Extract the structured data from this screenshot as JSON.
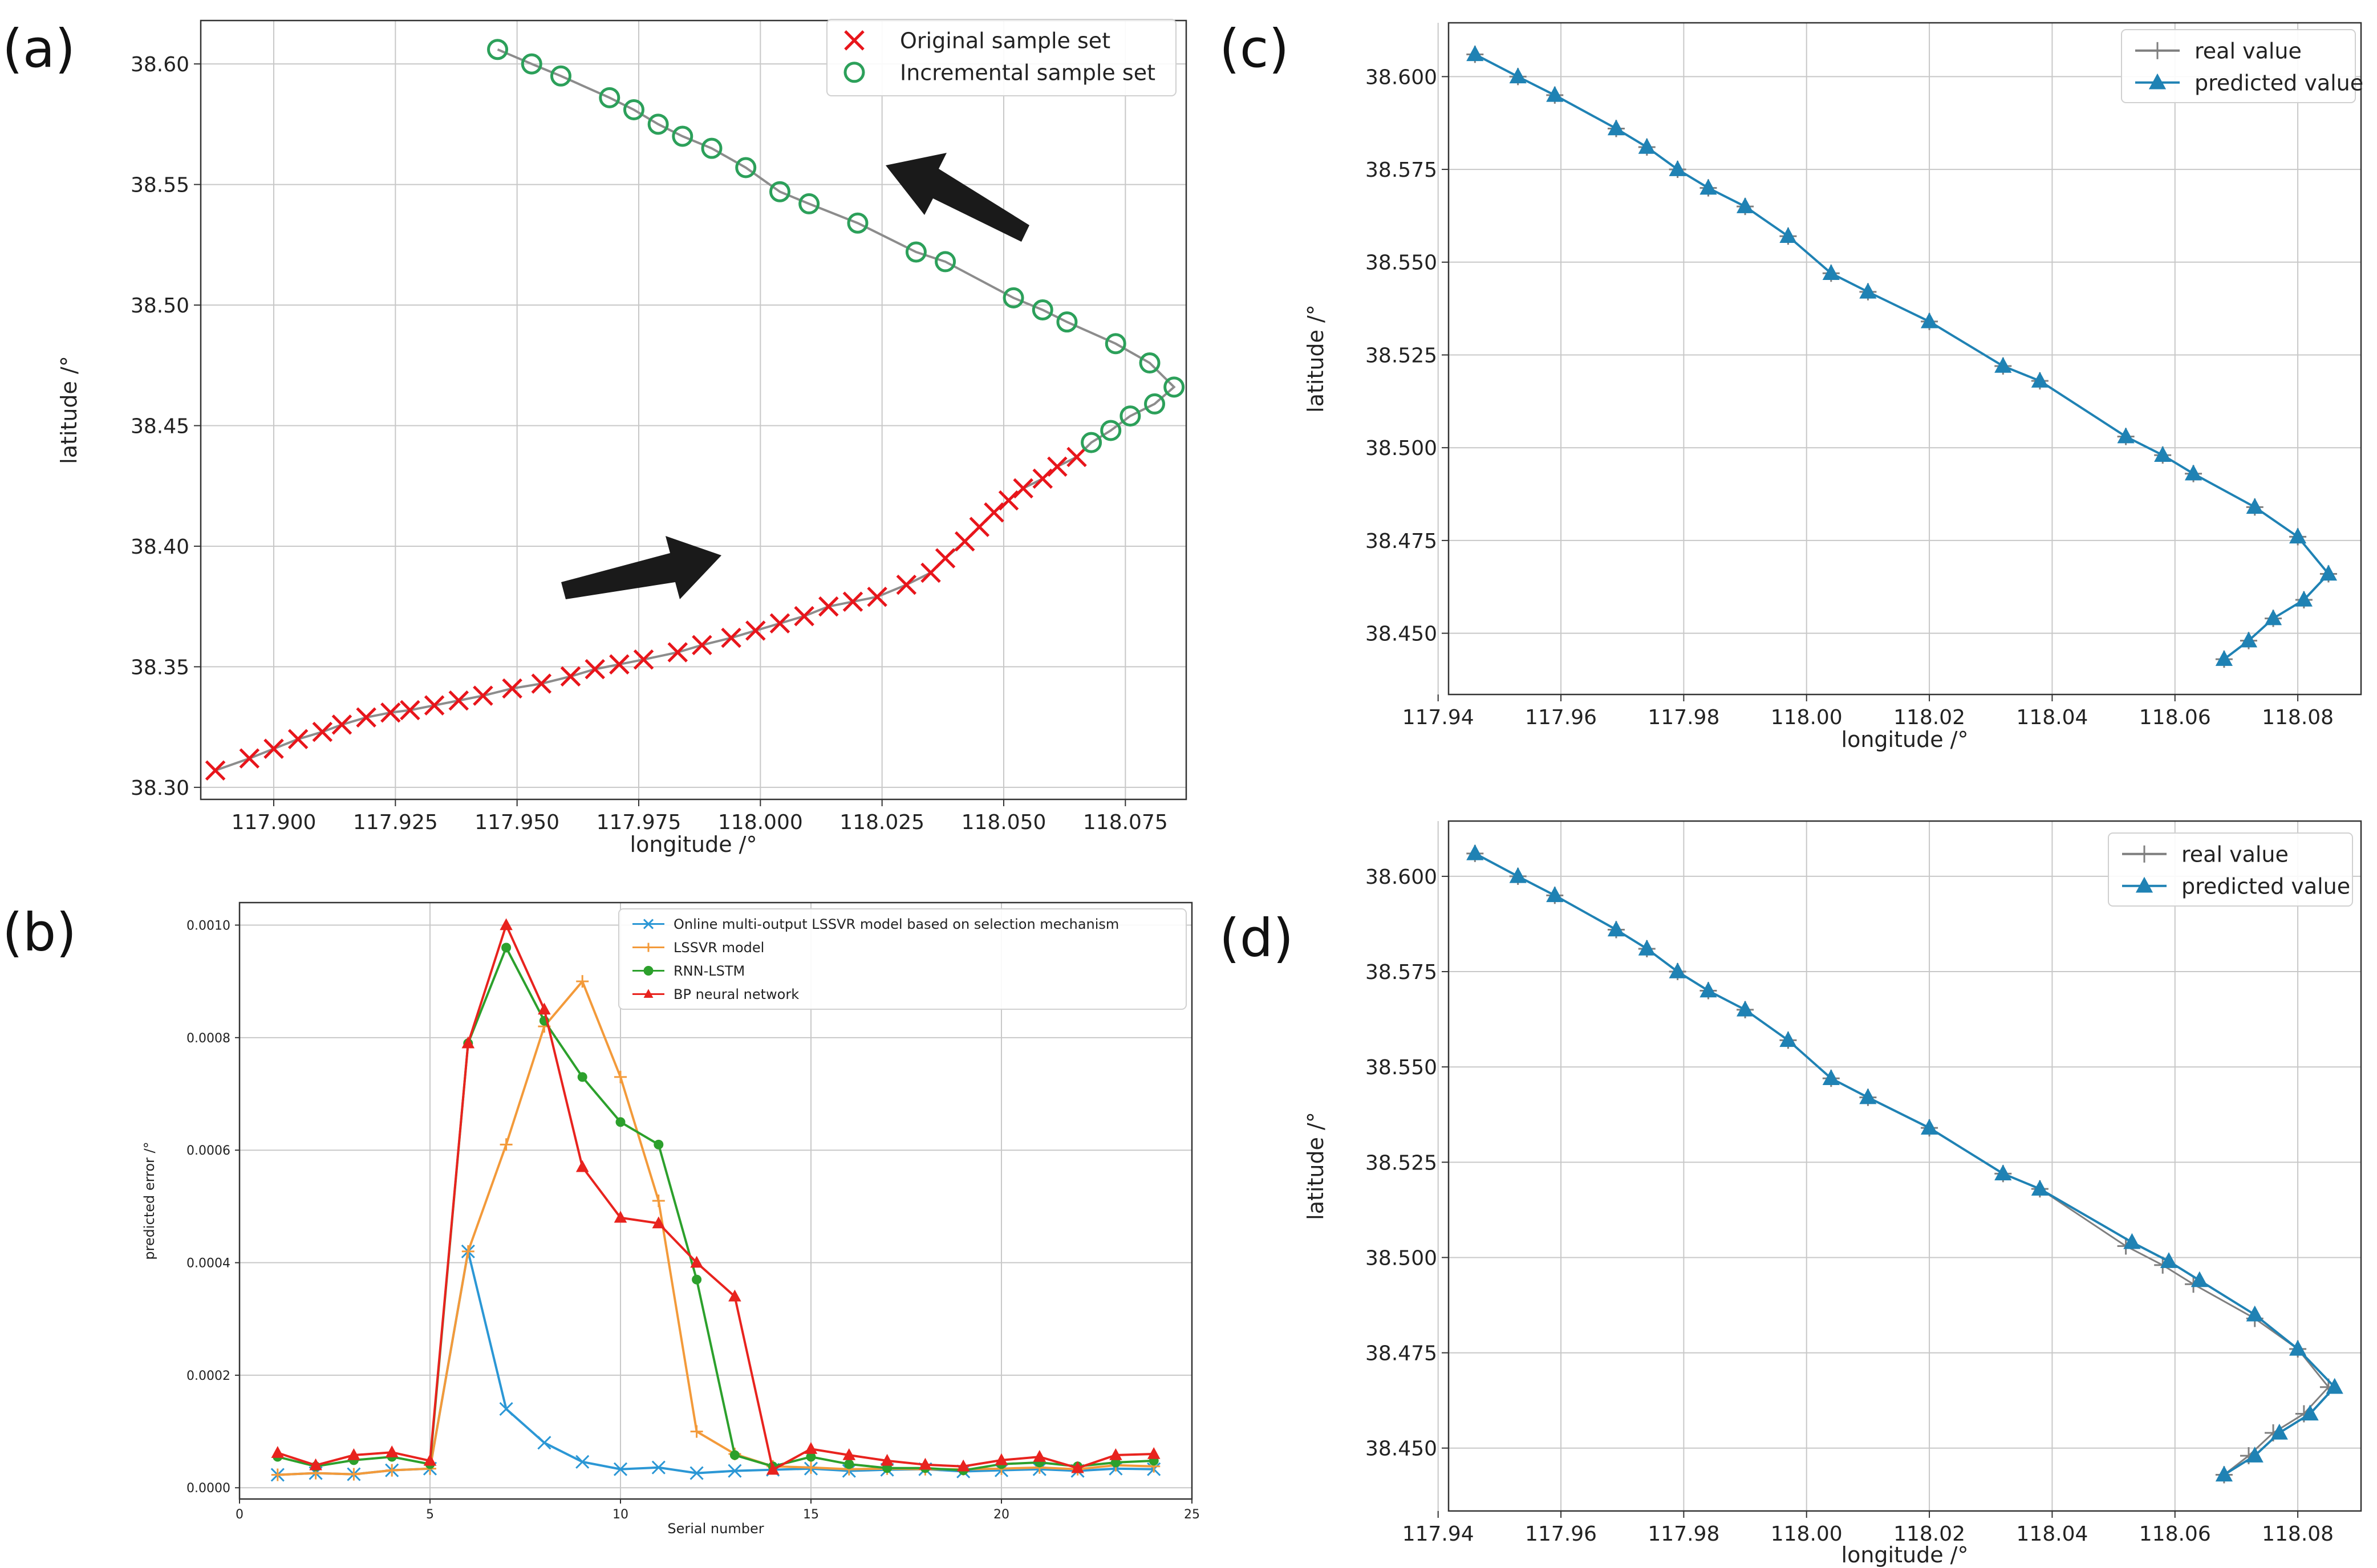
{
  "panel_labels": [
    "(a)",
    "(b)",
    "(c)",
    "(d)"
  ],
  "chart_data": [
    {
      "panel": "(a)",
      "type": "scatter",
      "xlabel": "longitude /°",
      "ylabel": "latitude /°",
      "xlim": [
        117.885,
        118.0875
      ],
      "ylim": [
        38.295,
        38.618
      ],
      "xticks": [
        "117.900",
        "117.925",
        "117.950",
        "117.975",
        "118.000",
        "118.025",
        "118.050",
        "118.075"
      ],
      "xtick_values": [
        117.9,
        117.925,
        117.95,
        117.975,
        118.0,
        118.025,
        118.05,
        118.075
      ],
      "yticks": [
        "38.30",
        "38.35",
        "38.40",
        "38.45",
        "38.50",
        "38.55",
        "38.60"
      ],
      "ytick_values": [
        38.3,
        38.35,
        38.4,
        38.45,
        38.5,
        38.55,
        38.6
      ],
      "grid": true,
      "legend_position": "top-right",
      "series": [
        {
          "name": "Original sample set",
          "marker": "x",
          "color": "#e8151b",
          "points": [
            [
              117.888,
              38.307
            ],
            [
              117.895,
              38.312
            ],
            [
              117.9,
              38.316
            ],
            [
              117.905,
              38.32
            ],
            [
              117.91,
              38.323
            ],
            [
              117.914,
              38.326
            ],
            [
              117.919,
              38.329
            ],
            [
              117.924,
              38.331
            ],
            [
              117.928,
              38.332
            ],
            [
              117.933,
              38.334
            ],
            [
              117.938,
              38.336
            ],
            [
              117.943,
              38.338
            ],
            [
              117.949,
              38.341
            ],
            [
              117.955,
              38.343
            ],
            [
              117.961,
              38.346
            ],
            [
              117.966,
              38.349
            ],
            [
              117.971,
              38.351
            ],
            [
              117.976,
              38.353
            ],
            [
              117.983,
              38.356
            ],
            [
              117.988,
              38.359
            ],
            [
              117.994,
              38.362
            ],
            [
              117.999,
              38.365
            ],
            [
              118.004,
              38.368
            ],
            [
              118.009,
              38.371
            ],
            [
              118.014,
              38.375
            ],
            [
              118.019,
              38.377
            ],
            [
              118.024,
              38.379
            ],
            [
              118.03,
              38.384
            ],
            [
              118.035,
              38.389
            ],
            [
              118.038,
              38.395
            ],
            [
              118.042,
              38.402
            ],
            [
              118.045,
              38.408
            ],
            [
              118.048,
              38.414
            ],
            [
              118.051,
              38.419
            ],
            [
              118.054,
              38.424
            ],
            [
              118.058,
              38.428
            ],
            [
              118.061,
              38.433
            ],
            [
              118.065,
              38.437
            ]
          ]
        },
        {
          "name": "Incremental sample set",
          "marker": "o",
          "color": "#2ca05a",
          "points": [
            [
              117.946,
              38.606
            ],
            [
              117.953,
              38.6
            ],
            [
              117.959,
              38.595
            ],
            [
              117.969,
              38.586
            ],
            [
              117.974,
              38.581
            ],
            [
              117.979,
              38.575
            ],
            [
              117.984,
              38.57
            ],
            [
              117.99,
              38.565
            ],
            [
              117.997,
              38.557
            ],
            [
              118.004,
              38.547
            ],
            [
              118.01,
              38.542
            ],
            [
              118.02,
              38.534
            ],
            [
              118.032,
              38.522
            ],
            [
              118.038,
              38.518
            ],
            [
              118.052,
              38.503
            ],
            [
              118.058,
              38.498
            ],
            [
              118.063,
              38.493
            ],
            [
              118.073,
              38.484
            ],
            [
              118.08,
              38.476
            ],
            [
              118.085,
              38.466
            ],
            [
              118.081,
              38.459
            ],
            [
              118.076,
              38.454
            ],
            [
              118.072,
              38.448
            ],
            [
              118.068,
              38.443
            ]
          ]
        }
      ],
      "annotations": [
        "arrow pointing up-left (upper trajectory)",
        "arrow pointing up-right (lower trajectory)"
      ]
    },
    {
      "panel": "(b)",
      "type": "line",
      "xlabel": "Serial number",
      "ylabel": "predicted error /°",
      "xlim": [
        0,
        25
      ],
      "ylim": [
        -2e-05,
        0.00104
      ],
      "xticks": [
        "0",
        "5",
        "10",
        "15",
        "20",
        "25"
      ],
      "xtick_values": [
        0,
        5,
        10,
        15,
        20,
        25
      ],
      "yticks": [
        "0.0000",
        "0.0002",
        "0.0004",
        "0.0006",
        "0.0008",
        "0.0010"
      ],
      "ytick_values": [
        0.0,
        0.0002,
        0.0004,
        0.0006,
        0.0008,
        0.001
      ],
      "grid": true,
      "legend_position": "top-right",
      "x": [
        1,
        2,
        3,
        4,
        5,
        6,
        7,
        8,
        9,
        10,
        11,
        12,
        13,
        14,
        15,
        16,
        17,
        18,
        19,
        20,
        21,
        22,
        23,
        24
      ],
      "series": [
        {
          "name": "Online multi-output LSSVR model based on selection mechanism",
          "marker": "x",
          "color": "#2b97d5",
          "values": [
            2.3e-05,
            2.6e-05,
            2.4e-05,
            3.1e-05,
            3.4e-05,
            0.00042,
            0.00014,
            8e-05,
            4.6e-05,
            3.3e-05,
            3.6e-05,
            2.6e-05,
            3e-05,
            3.2e-05,
            3.4e-05,
            3e-05,
            3.2e-05,
            3.3e-05,
            2.9e-05,
            3.1e-05,
            3.3e-05,
            3e-05,
            3.4e-05,
            3.3e-05
          ]
        },
        {
          "name": "LSSVR model",
          "marker": "+",
          "color": "#f39a3a",
          "values": [
            2.3e-05,
            2.6e-05,
            2.4e-05,
            3.1e-05,
            3.4e-05,
            0.00042,
            0.00061,
            0.00082,
            0.0009,
            0.00073,
            0.00051,
            0.0001,
            6e-05,
            3.8e-05,
            3.6e-05,
            3.3e-05,
            3.4e-05,
            3.3e-05,
            3.3e-05,
            3.4e-05,
            3.6e-05,
            3.3e-05,
            4e-05,
            3.8e-05
          ]
        },
        {
          "name": "RNN-LSTM",
          "marker": "o",
          "color": "#2ca02c",
          "values": [
            5.5e-05,
            3.8e-05,
            4.9e-05,
            5.5e-05,
            4.2e-05,
            0.00079,
            0.00096,
            0.00083,
            0.00073,
            0.00065,
            0.00061,
            0.00037,
            5.8e-05,
            3.8e-05,
            5.5e-05,
            4.2e-05,
            3.5e-05,
            3.5e-05,
            3.1e-05,
            4.2e-05,
            4.5e-05,
            3.8e-05,
            4.5e-05,
            4.8e-05
          ]
        },
        {
          "name": "BP neural network",
          "marker": "^",
          "color": "#e8231e",
          "values": [
            6.2e-05,
            4e-05,
            5.8e-05,
            6.3e-05,
            4.8e-05,
            0.00079,
            0.001,
            0.00085,
            0.00057,
            0.00048,
            0.00047,
            0.0004,
            0.00034,
            3.2e-05,
            6.9e-05,
            5.8e-05,
            4.8e-05,
            4.1e-05,
            3.8e-05,
            4.9e-05,
            5.5e-05,
            3.5e-05,
            5.8e-05,
            6e-05
          ]
        }
      ]
    },
    {
      "panel": "(c)",
      "type": "line",
      "xlabel": "longitude /°",
      "ylabel": "latitude /°",
      "xlim": [
        117.9417,
        118.0903
      ],
      "ylim": [
        38.4335,
        38.6145
      ],
      "xticks": [
        "117.94",
        "117.96",
        "117.98",
        "118.00",
        "118.02",
        "118.04",
        "118.06",
        "118.08"
      ],
      "xtick_values": [
        117.94,
        117.96,
        117.98,
        118.0,
        118.02,
        118.04,
        118.06,
        118.08
      ],
      "yticks": [
        "38.450",
        "38.475",
        "38.500",
        "38.525",
        "38.550",
        "38.575",
        "38.600"
      ],
      "ytick_values": [
        38.45,
        38.475,
        38.5,
        38.525,
        38.55,
        38.575,
        38.6
      ],
      "grid": true,
      "legend_position": "top-right",
      "series": [
        {
          "name": "real value",
          "marker": "+",
          "color": "#7f7f7f",
          "points": [
            [
              117.946,
              38.606
            ],
            [
              117.953,
              38.6
            ],
            [
              117.959,
              38.595
            ],
            [
              117.969,
              38.586
            ],
            [
              117.974,
              38.581
            ],
            [
              117.979,
              38.575
            ],
            [
              117.984,
              38.57
            ],
            [
              117.99,
              38.565
            ],
            [
              117.997,
              38.557
            ],
            [
              118.004,
              38.547
            ],
            [
              118.01,
              38.542
            ],
            [
              118.02,
              38.534
            ],
            [
              118.032,
              38.522
            ],
            [
              118.038,
              38.518
            ],
            [
              118.052,
              38.503
            ],
            [
              118.058,
              38.498
            ],
            [
              118.063,
              38.493
            ],
            [
              118.073,
              38.484
            ],
            [
              118.08,
              38.476
            ],
            [
              118.085,
              38.466
            ],
            [
              118.081,
              38.459
            ],
            [
              118.076,
              38.454
            ],
            [
              118.072,
              38.448
            ],
            [
              118.068,
              38.443
            ]
          ]
        },
        {
          "name": "predicted value",
          "marker": "^",
          "color": "#1f82b4",
          "points": [
            [
              117.946,
              38.606
            ],
            [
              117.953,
              38.6
            ],
            [
              117.959,
              38.595
            ],
            [
              117.969,
              38.586
            ],
            [
              117.974,
              38.581
            ],
            [
              117.979,
              38.575
            ],
            [
              117.984,
              38.57
            ],
            [
              117.99,
              38.565
            ],
            [
              117.997,
              38.557
            ],
            [
              118.004,
              38.547
            ],
            [
              118.01,
              38.542
            ],
            [
              118.02,
              38.534
            ],
            [
              118.032,
              38.522
            ],
            [
              118.038,
              38.518
            ],
            [
              118.052,
              38.503
            ],
            [
              118.058,
              38.498
            ],
            [
              118.063,
              38.493
            ],
            [
              118.073,
              38.484
            ],
            [
              118.08,
              38.476
            ],
            [
              118.085,
              38.466
            ],
            [
              118.081,
              38.459
            ],
            [
              118.076,
              38.454
            ],
            [
              118.072,
              38.448
            ],
            [
              118.068,
              38.443
            ]
          ]
        }
      ]
    },
    {
      "panel": "(d)",
      "type": "line",
      "xlabel": "longitude /°",
      "ylabel": "latitude /°",
      "xlim": [
        117.9417,
        118.0903
      ],
      "ylim": [
        38.4335,
        38.6145
      ],
      "xticks": [
        "117.94",
        "117.96",
        "117.98",
        "118.00",
        "118.02",
        "118.04",
        "118.06",
        "118.08"
      ],
      "xtick_values": [
        117.94,
        117.96,
        117.98,
        118.0,
        118.02,
        118.04,
        118.06,
        118.08
      ],
      "yticks": [
        "38.450",
        "38.475",
        "38.500",
        "38.525",
        "38.550",
        "38.575",
        "38.600"
      ],
      "ytick_values": [
        38.45,
        38.475,
        38.5,
        38.525,
        38.55,
        38.575,
        38.6
      ],
      "grid": true,
      "legend_position": "top-right",
      "series": [
        {
          "name": "real value",
          "marker": "+",
          "color": "#7f7f7f",
          "points": [
            [
              117.946,
              38.606
            ],
            [
              117.953,
              38.6
            ],
            [
              117.959,
              38.595
            ],
            [
              117.969,
              38.586
            ],
            [
              117.974,
              38.581
            ],
            [
              117.979,
              38.575
            ],
            [
              117.984,
              38.57
            ],
            [
              117.99,
              38.565
            ],
            [
              117.997,
              38.557
            ],
            [
              118.004,
              38.547
            ],
            [
              118.01,
              38.542
            ],
            [
              118.02,
              38.534
            ],
            [
              118.032,
              38.522
            ],
            [
              118.038,
              38.518
            ],
            [
              118.052,
              38.503
            ],
            [
              118.058,
              38.498
            ],
            [
              118.063,
              38.493
            ],
            [
              118.073,
              38.484
            ],
            [
              118.08,
              38.476
            ],
            [
              118.085,
              38.466
            ],
            [
              118.081,
              38.459
            ],
            [
              118.076,
              38.454
            ],
            [
              118.072,
              38.448
            ],
            [
              118.068,
              38.443
            ]
          ]
        },
        {
          "name": "predicted value",
          "marker": "^",
          "color": "#1f82b4",
          "points": [
            [
              117.946,
              38.606
            ],
            [
              117.953,
              38.6
            ],
            [
              117.959,
              38.595
            ],
            [
              117.969,
              38.586
            ],
            [
              117.974,
              38.581
            ],
            [
              117.979,
              38.575
            ],
            [
              117.984,
              38.57
            ],
            [
              117.99,
              38.565
            ],
            [
              117.997,
              38.557
            ],
            [
              118.004,
              38.547
            ],
            [
              118.01,
              38.542
            ],
            [
              118.02,
              38.534
            ],
            [
              118.032,
              38.522
            ],
            [
              118.038,
              38.518
            ],
            [
              118.053,
              38.504
            ],
            [
              118.059,
              38.499
            ],
            [
              118.064,
              38.494
            ],
            [
              118.073,
              38.485
            ],
            [
              118.08,
              38.476
            ],
            [
              118.086,
              38.466
            ],
            [
              118.082,
              38.459
            ],
            [
              118.077,
              38.454
            ],
            [
              118.073,
              38.448
            ],
            [
              118.068,
              38.443
            ]
          ]
        }
      ]
    }
  ]
}
